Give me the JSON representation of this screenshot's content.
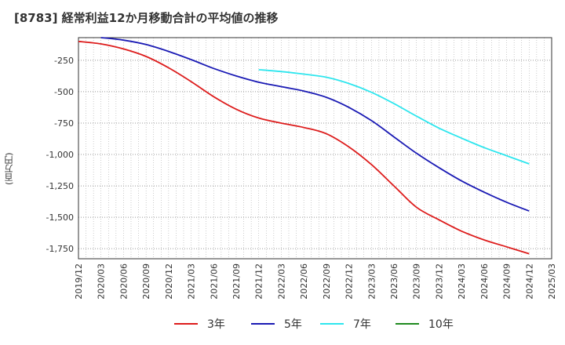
{
  "chart_data": {
    "type": "line",
    "title": "[8783]  経常利益12か月移動合計の平均値の推移",
    "ylabel": "(百万円)",
    "xlabel": "",
    "x_ticks": [
      "2019/12",
      "2020/03",
      "2020/06",
      "2020/09",
      "2020/12",
      "2021/03",
      "2021/06",
      "2021/09",
      "2021/12",
      "2022/03",
      "2022/06",
      "2022/09",
      "2022/12",
      "2023/03",
      "2023/06",
      "2023/09",
      "2023/12",
      "2024/03",
      "2024/06",
      "2024/09",
      "2024/12",
      "2025/03"
    ],
    "y_ticks": [
      -250,
      -500,
      -750,
      -1000,
      -1250,
      -1500,
      -1750
    ],
    "y_tick_labels": [
      "-250",
      "-500",
      "-750",
      "-1,000",
      "-1,250",
      "-1,500",
      "-1,750"
    ],
    "ylim": [
      -1830,
      -70
    ],
    "xlim": [
      "2019/12",
      "2025/03"
    ],
    "grid": true,
    "legend_position": "bottom",
    "series": [
      {
        "name": "3年",
        "color": "#dd1c1c",
        "points": [
          [
            "2019/12",
            -100
          ],
          [
            "2020/03",
            -120
          ],
          [
            "2020/06",
            -160
          ],
          [
            "2020/09",
            -220
          ],
          [
            "2020/12",
            -310
          ],
          [
            "2021/03",
            -420
          ],
          [
            "2021/06",
            -540
          ],
          [
            "2021/09",
            -640
          ],
          [
            "2021/12",
            -710
          ],
          [
            "2022/03",
            -750
          ],
          [
            "2022/06",
            -785
          ],
          [
            "2022/09",
            -835
          ],
          [
            "2022/12",
            -940
          ],
          [
            "2023/03",
            -1080
          ],
          [
            "2023/06",
            -1250
          ],
          [
            "2023/09",
            -1420
          ],
          [
            "2023/12",
            -1520
          ],
          [
            "2024/03",
            -1610
          ],
          [
            "2024/06",
            -1680
          ],
          [
            "2024/09",
            -1735
          ],
          [
            "2024/12",
            -1790
          ]
        ]
      },
      {
        "name": "5年",
        "color": "#1a1ab4",
        "points": [
          [
            "2020/03",
            -70
          ],
          [
            "2020/06",
            -90
          ],
          [
            "2020/09",
            -125
          ],
          [
            "2020/12",
            -180
          ],
          [
            "2021/03",
            -245
          ],
          [
            "2021/06",
            -315
          ],
          [
            "2021/09",
            -375
          ],
          [
            "2021/12",
            -425
          ],
          [
            "2022/03",
            -460
          ],
          [
            "2022/06",
            -495
          ],
          [
            "2022/09",
            -545
          ],
          [
            "2022/12",
            -625
          ],
          [
            "2023/03",
            -730
          ],
          [
            "2023/06",
            -860
          ],
          [
            "2023/09",
            -990
          ],
          [
            "2023/12",
            -1105
          ],
          [
            "2024/03",
            -1210
          ],
          [
            "2024/06",
            -1300
          ],
          [
            "2024/09",
            -1380
          ],
          [
            "2024/12",
            -1450
          ]
        ]
      },
      {
        "name": "7年",
        "color": "#2ee6ee",
        "points": [
          [
            "2021/12",
            -325
          ],
          [
            "2022/03",
            -340
          ],
          [
            "2022/06",
            -360
          ],
          [
            "2022/09",
            -385
          ],
          [
            "2022/12",
            -435
          ],
          [
            "2023/03",
            -505
          ],
          [
            "2023/06",
            -595
          ],
          [
            "2023/09",
            -695
          ],
          [
            "2023/12",
            -790
          ],
          [
            "2024/03",
            -870
          ],
          [
            "2024/06",
            -945
          ],
          [
            "2024/09",
            -1010
          ],
          [
            "2024/12",
            -1075
          ]
        ]
      },
      {
        "name": "10年",
        "color": "#1f8a1f",
        "points": []
      }
    ]
  }
}
